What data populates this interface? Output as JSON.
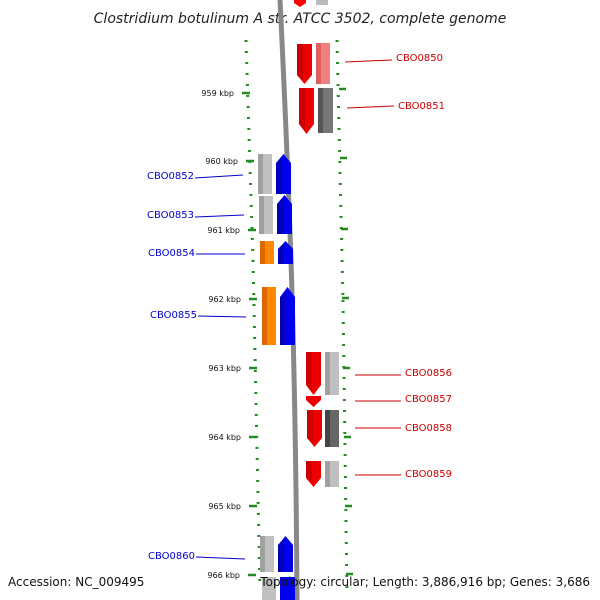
{
  "title": "Clostridium botulinum A str. ATCC 3502, complete genome",
  "footer": {
    "accession": "Accession: NC_009495",
    "stats": "Topology: circular; Length: 3,886,916 bp; Genes: 3,686"
  },
  "colors": {
    "forward_gene": "#ff0000",
    "reverse_gene": "#0000ff",
    "forward_label": "#cc0000",
    "reverse_label": "#0000cc",
    "orange_gene": "#ff8800",
    "tick_mark": "#228b22",
    "backbone": "#808080"
  },
  "ticks": [
    "959 kbp",
    "960 kbp",
    "961 kbp",
    "962 kbp",
    "963 kbp",
    "964 kbp",
    "965 kbp",
    "966 kbp"
  ],
  "genes_right": [
    "CBO0850",
    "CBO0851",
    "CBO0856",
    "CBO0857",
    "CBO0858",
    "CBO0859"
  ],
  "genes_left": [
    "CBO0852",
    "CBO0853",
    "CBO0854",
    "CBO0855",
    "CBO0860"
  ]
}
